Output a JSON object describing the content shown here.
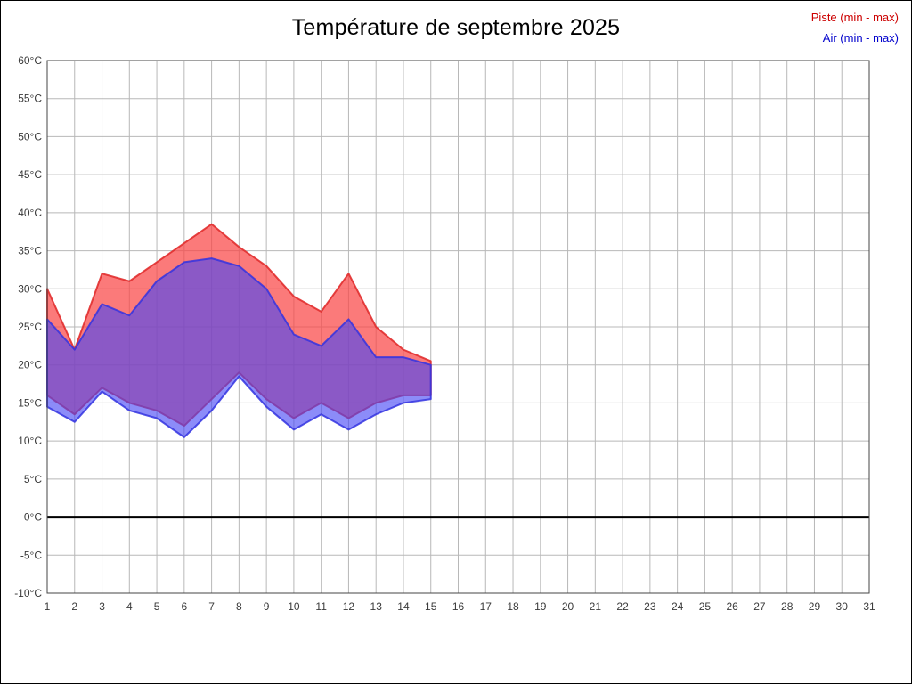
{
  "chart_data": {
    "type": "area",
    "title": "Température de septembre 2025",
    "xlabel": "",
    "ylabel": "",
    "x": [
      1,
      2,
      3,
      4,
      5,
      6,
      7,
      8,
      9,
      10,
      11,
      12,
      13,
      14,
      15
    ],
    "series": [
      {
        "name": "Piste",
        "max": [
          30,
          22,
          32,
          31,
          33.5,
          36,
          38.5,
          35.5,
          33,
          29,
          27,
          32,
          25,
          22,
          20.5
        ],
        "min": [
          16,
          13.5,
          17,
          15,
          14,
          12,
          15.5,
          19,
          15.5,
          13,
          15,
          13,
          15,
          16,
          16
        ],
        "fill": "rgba(250,70,70,0.72)",
        "stroke": "rgba(225,45,45,0.9)"
      },
      {
        "name": "Air",
        "max": [
          26,
          22,
          28,
          26.5,
          31,
          33.5,
          34,
          33,
          30,
          24,
          22.5,
          26,
          21,
          21,
          20
        ],
        "min": [
          14.5,
          12.5,
          16.5,
          14,
          13,
          10.5,
          14,
          18.5,
          14.5,
          11.5,
          13.5,
          11.5,
          13.5,
          15,
          15.5
        ],
        "fill": "rgba(70,70,245,0.62)",
        "stroke": "rgba(50,50,225,0.85)"
      }
    ],
    "xlim": [
      1,
      31
    ],
    "ylim": [
      -10,
      60
    ],
    "x_tick_step": 1,
    "y_tick_step": 5,
    "y_tick_suffix": "°C",
    "grid": true,
    "zero_line": 0,
    "legend_position": "top-right",
    "legend": [
      {
        "label": "Piste (min - max)",
        "color": "#cc0000"
      },
      {
        "label": "Air (min - max)",
        "color": "#0000cc"
      }
    ],
    "colors": {
      "grid": "#b8b8b8",
      "plot_border": "#444444",
      "zero_line": "#000000",
      "title": "#000000",
      "tick_text": "#3a3a3a"
    }
  }
}
